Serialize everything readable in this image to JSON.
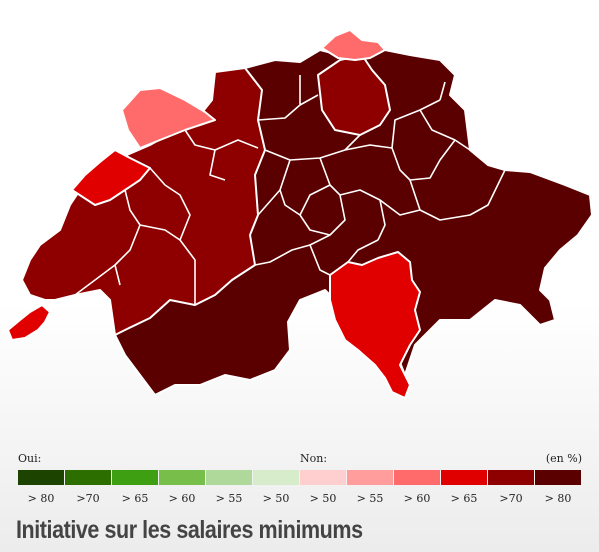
{
  "map": {
    "colors": {
      "non_gt80": "#5a0000",
      "non_gt70": "#8e0000",
      "non_gt65": "#e00000",
      "non_gt60": "#ff6b6b"
    }
  },
  "legend": {
    "oui_label": "Oui:",
    "non_label": "Non:",
    "unit_label": "(en %)",
    "items": [
      {
        "label": "> 80",
        "color": "#1c4400"
      },
      {
        "label": ">70",
        "color": "#2c6e00"
      },
      {
        "label": "> 65",
        "color": "#3f9f12"
      },
      {
        "label": "> 60",
        "color": "#78be4a"
      },
      {
        "label": "> 55",
        "color": "#afd99a"
      },
      {
        "label": "> 50",
        "color": "#d6ecca"
      },
      {
        "label": "> 50",
        "color": "#ffcfcf"
      },
      {
        "label": "> 55",
        "color": "#ff9d9d"
      },
      {
        "label": "> 60",
        "color": "#ff6b6b"
      },
      {
        "label": "> 65",
        "color": "#e00000"
      },
      {
        "label": ">70",
        "color": "#8e0000"
      },
      {
        "label": "> 80",
        "color": "#5a0000"
      }
    ]
  },
  "title": "Initiative sur les salaires minimums"
}
